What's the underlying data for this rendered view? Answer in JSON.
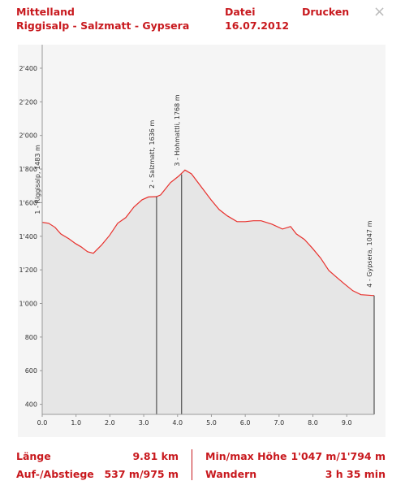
{
  "header": {
    "region": "Mittelland",
    "route": "Riggisalp - Salzmatt - Gypsera",
    "file": "Datei",
    "date": "16.07.2012",
    "print": "Drucken"
  },
  "chart_data": {
    "type": "area",
    "x": [
      0,
      0.19,
      0.38,
      0.55,
      0.79,
      0.98,
      1.15,
      1.34,
      1.51,
      1.75,
      1.99,
      2.23,
      2.47,
      2.71,
      2.95,
      3.14,
      3.38,
      3.5,
      3.79,
      4.03,
      4.22,
      4.41,
      4.7,
      4.99,
      5.23,
      5.47,
      5.76,
      6.0,
      6.24,
      6.47,
      6.79,
      7.1,
      7.34,
      7.51,
      7.75,
      7.99,
      8.23,
      8.47,
      8.71,
      8.94,
      9.18,
      9.42,
      9.81
    ],
    "series": [
      {
        "color": "#e8302c",
        "values": [
          1483,
          1477,
          1453,
          1414,
          1385,
          1357,
          1337,
          1308,
          1299,
          1347,
          1405,
          1477,
          1511,
          1574,
          1617,
          1634,
          1636,
          1646,
          1719,
          1757,
          1794,
          1771,
          1694,
          1617,
          1559,
          1521,
          1487,
          1487,
          1492,
          1492,
          1472,
          1443,
          1458,
          1414,
          1381,
          1328,
          1270,
          1197,
          1154,
          1115,
          1076,
          1052,
          1047
        ]
      }
    ],
    "fill": "#e6e6e6",
    "xlim": [
      0,
      9.81
    ],
    "ylim": [
      340,
      2540
    ],
    "xticks": [
      {
        "value": 0,
        "label": "0.0"
      },
      {
        "value": 1,
        "label": "1.0"
      },
      {
        "value": 2,
        "label": "2.0"
      },
      {
        "value": 3,
        "label": "3.0"
      },
      {
        "value": 4,
        "label": "4.0"
      },
      {
        "value": 5,
        "label": "5.0"
      },
      {
        "value": 6,
        "label": "6.0"
      },
      {
        "value": 7,
        "label": "7.0"
      },
      {
        "value": 8,
        "label": "8.0"
      },
      {
        "value": 9,
        "label": "9.0"
      }
    ],
    "yticks": [
      400,
      600,
      800,
      {
        "value": 1000,
        "label": "1'000"
      },
      {
        "value": 1200,
        "label": "1'200"
      },
      {
        "value": 1400,
        "label": "1'400"
      },
      {
        "value": 1600,
        "label": "1'600"
      },
      {
        "value": 1800,
        "label": "1'800"
      },
      {
        "value": 2000,
        "label": "2'000"
      },
      {
        "value": 2200,
        "label": "2'200"
      },
      {
        "value": 2400,
        "label": "2'400"
      }
    ],
    "waypoints": [
      {
        "label": "1 - Riggisalp, 1483 m",
        "x": 0,
        "elevation": 1483
      },
      {
        "label": "2 - Salzmatt, 1636 m",
        "x": 3.38,
        "elevation": 1636
      },
      {
        "label": "3 - Hohmattli, 1768 m",
        "x": 4.12,
        "elevation": 1768
      },
      {
        "label": "4 - Gypsera, 1047 m",
        "x": 9.81,
        "elevation": 1047
      }
    ]
  },
  "stats": [
    {
      "label": "Länge",
      "value": "9.81 km"
    },
    {
      "label": "Min/max Höhe",
      "value": "1'047 m/1'794 m"
    },
    {
      "label": "Auf-/Abstiege",
      "value": "537 m/975 m"
    },
    {
      "label": "Wandern",
      "value": "3 h 35 min"
    }
  ]
}
